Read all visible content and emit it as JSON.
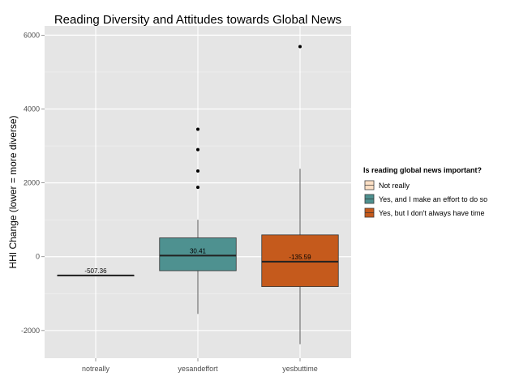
{
  "chart_data": {
    "type": "boxplot",
    "title": "Reading Diversity and Attitudes towards Global News",
    "xlabel": "",
    "ylabel": "HHI Change (lower = more diverse)",
    "ylim": [
      -2750,
      6250
    ],
    "y_ticks": [
      -2000,
      0,
      2000,
      4000,
      6000
    ],
    "y_tick_labels": [
      "-2000",
      "0",
      "2000",
      "4000",
      "6000"
    ],
    "grid": true,
    "legend": {
      "title": "Is reading global news important?",
      "position": "right",
      "entries": [
        {
          "label": "Not really",
          "color": "#fde0c5"
        },
        {
          "label": "Yes, and I make an effort to do so",
          "color": "#4e9190"
        },
        {
          "label": "Yes, but I don't always have time",
          "color": "#c55a1c"
        }
      ]
    },
    "categories": [
      "notreally",
      "yesandeffort",
      "yesbuttime"
    ],
    "boxes": [
      {
        "category": "notreally",
        "color": "#fde0c5",
        "min": -507.36,
        "q1": -507.36,
        "median": -507.36,
        "q3": -507.36,
        "max": -507.36,
        "median_label": "-507.36",
        "outliers": []
      },
      {
        "category": "yesandeffort",
        "color": "#4e9190",
        "min": -1550,
        "q1": -380,
        "median": 30.41,
        "q3": 510,
        "max": 1000,
        "median_label": "30.41",
        "outliers": [
          1880,
          2320,
          2900,
          3450
        ]
      },
      {
        "category": "yesbuttime",
        "color": "#c55a1c",
        "min": -2370,
        "q1": -810,
        "median": -135.59,
        "q3": 590,
        "max": 2380,
        "median_label": "-135.59",
        "outliers": [
          5690
        ]
      }
    ]
  }
}
